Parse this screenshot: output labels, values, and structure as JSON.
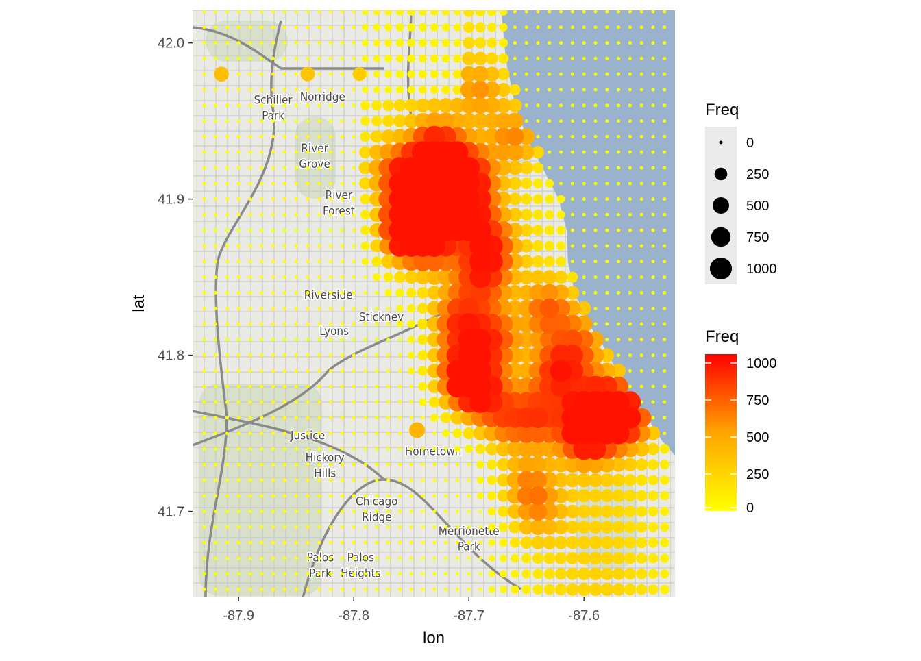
{
  "chart_data": {
    "type": "scatter",
    "subtype": "bubble map",
    "xlabel": "lon",
    "ylabel": "lat",
    "xlim": [
      -87.94,
      -87.52
    ],
    "ylim": [
      41.645,
      42.022
    ],
    "x_ticks": [
      -87.9,
      -87.8,
      -87.7,
      -87.6
    ],
    "x_tick_labels": [
      "-87.9",
      "-87.8",
      "-87.7",
      "-87.6"
    ],
    "y_ticks": [
      41.7,
      41.8,
      41.9,
      42.0
    ],
    "y_tick_labels": [
      "41.7",
      "41.8",
      "41.9",
      "42.0"
    ],
    "grid": false,
    "basemap": true,
    "lake_shoreline": [
      [
        -87.672,
        42.022
      ],
      [
        -87.668,
        41.99
      ],
      [
        -87.66,
        41.96
      ],
      [
        -87.65,
        41.94
      ],
      [
        -87.636,
        41.92
      ],
      [
        -87.622,
        41.9
      ],
      [
        -87.615,
        41.88
      ],
      [
        -87.614,
        41.86
      ],
      [
        -87.608,
        41.84
      ],
      [
        -87.596,
        41.82
      ],
      [
        -87.578,
        41.8
      ],
      [
        -87.566,
        41.78
      ],
      [
        -87.545,
        41.76
      ],
      [
        -87.532,
        41.745
      ],
      [
        -87.52,
        41.735
      ]
    ],
    "grid_spacing": {
      "lon": 0.01,
      "lat": 0.01
    },
    "map_labels": [
      {
        "text": "Schiller",
        "lon": -87.87,
        "lat": 41.961
      },
      {
        "text": "Park",
        "lon": -87.87,
        "lat": 41.951
      },
      {
        "text": "Norridge",
        "lon": -87.827,
        "lat": 41.963
      },
      {
        "text": "River",
        "lon": -87.834,
        "lat": 41.93
      },
      {
        "text": "Grove",
        "lon": -87.834,
        "lat": 41.92
      },
      {
        "text": "River",
        "lon": -87.813,
        "lat": 41.9
      },
      {
        "text": "Forest",
        "lon": -87.813,
        "lat": 41.89
      },
      {
        "text": "Riverside",
        "lon": -87.822,
        "lat": 41.836
      },
      {
        "text": "Stickney",
        "lon": -87.776,
        "lat": 41.822
      },
      {
        "text": "Lyons",
        "lon": -87.817,
        "lat": 41.813
      },
      {
        "text": "Justice",
        "lon": -87.84,
        "lat": 41.746
      },
      {
        "text": "Hickory",
        "lon": -87.825,
        "lat": 41.732
      },
      {
        "text": "Hills",
        "lon": -87.825,
        "lat": 41.722
      },
      {
        "text": "Hometown",
        "lon": -87.731,
        "lat": 41.736
      },
      {
        "text": "Chicago",
        "lon": -87.78,
        "lat": 41.704
      },
      {
        "text": "Ridge",
        "lon": -87.78,
        "lat": 41.694
      },
      {
        "text": "Merrionette",
        "lon": -87.7,
        "lat": 41.685
      },
      {
        "text": "Park",
        "lon": -87.7,
        "lat": 41.675
      },
      {
        "text": "Palos",
        "lon": -87.829,
        "lat": 41.668
      },
      {
        "text": "Park",
        "lon": -87.829,
        "lat": 41.658
      },
      {
        "text": "Palos",
        "lon": -87.794,
        "lat": 41.668
      },
      {
        "text": "Heights",
        "lon": -87.794,
        "lat": 41.658
      }
    ],
    "hotspots": [
      {
        "lon": -87.755,
        "lat": 41.879,
        "freq": 1000
      },
      {
        "lon": -87.695,
        "lat": 41.779,
        "freq": 820
      },
      {
        "lon": -87.736,
        "lat": 41.911,
        "freq": 780
      },
      {
        "lon": -87.728,
        "lat": 41.93,
        "freq": 720
      },
      {
        "lon": -87.73,
        "lat": 41.895,
        "freq": 700
      },
      {
        "lon": -87.7,
        "lat": 41.915,
        "freq": 650
      },
      {
        "lon": -87.71,
        "lat": 41.822,
        "freq": 620
      },
      {
        "lon": -87.68,
        "lat": 41.81,
        "freq": 560
      },
      {
        "lon": -87.62,
        "lat": 41.79,
        "freq": 660
      },
      {
        "lon": -87.63,
        "lat": 41.83,
        "freq": 580
      },
      {
        "lon": -87.6,
        "lat": 41.75,
        "freq": 620
      },
      {
        "lon": -87.56,
        "lat": 41.76,
        "freq": 700
      },
      {
        "lon": -87.67,
        "lat": 41.76,
        "freq": 560
      },
      {
        "lon": -87.64,
        "lat": 41.76,
        "freq": 540
      },
      {
        "lon": -87.66,
        "lat": 41.94,
        "freq": 520
      },
      {
        "lon": -87.68,
        "lat": 41.87,
        "freq": 480
      },
      {
        "lon": -87.69,
        "lat": 41.85,
        "freq": 520
      },
      {
        "lon": -87.77,
        "lat": 41.92,
        "freq": 480
      },
      {
        "lon": -87.58,
        "lat": 41.77,
        "freq": 560
      },
      {
        "lon": -87.65,
        "lat": 41.72,
        "freq": 420
      },
      {
        "lon": -87.64,
        "lat": 41.7,
        "freq": 380
      },
      {
        "lon": -87.69,
        "lat": 41.97,
        "freq": 420
      },
      {
        "lon": -87.75,
        "lat": 41.9,
        "freq": 560
      },
      {
        "lon": -87.71,
        "lat": 41.79,
        "freq": 560
      },
      {
        "lon": -87.59,
        "lat": 41.76,
        "freq": 600
      },
      {
        "lon": -87.73,
        "lat": 41.87,
        "freq": 520
      },
      {
        "lon": -87.6,
        "lat": 41.81,
        "freq": 460
      },
      {
        "lon": -87.7,
        "lat": 41.89,
        "freq": 520
      }
    ],
    "isolated_points": [
      {
        "lon": -87.915,
        "lat": 41.98,
        "freq": 380
      },
      {
        "lon": -87.84,
        "lat": 41.98,
        "freq": 350
      },
      {
        "lon": -87.795,
        "lat": 41.98,
        "freq": 300
      },
      {
        "lon": -87.745,
        "lat": 41.752,
        "freq": 440
      },
      {
        "lon": -87.745,
        "lat": 41.872,
        "freq": 250
      }
    ],
    "size_legend": {
      "title": "Freq",
      "breaks": [
        0,
        250,
        500,
        750,
        1000
      ],
      "labels": [
        "0",
        "250",
        "500",
        "750",
        "1000"
      ]
    },
    "color_legend": {
      "title": "Freq",
      "low_color": "#ffff00",
      "high_color": "#ff0000",
      "mid_color": "#ffa500",
      "breaks": [
        0,
        250,
        500,
        750,
        1000
      ],
      "labels": [
        "0",
        "250",
        "500",
        "750",
        "1000"
      ],
      "limits": [
        0,
        1060
      ]
    },
    "colors": {
      "land": "#eaeae5",
      "water": "#9bb2cc",
      "park": "#c9d6b5",
      "road": "#8a8a8a",
      "minor_road": "#c4c4c4",
      "panel_bg": "#ebebeb"
    }
  }
}
